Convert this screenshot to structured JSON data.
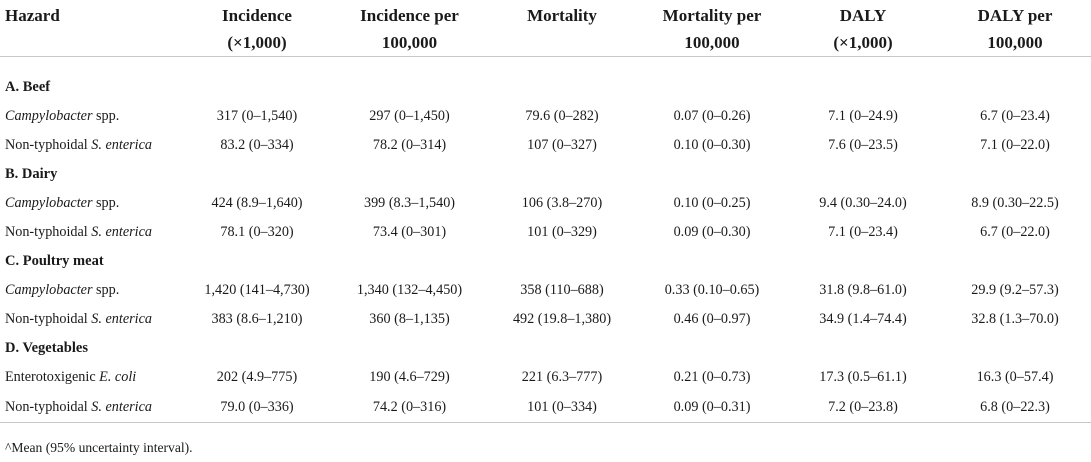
{
  "headers": [
    [
      "Hazard",
      ""
    ],
    [
      "Incidence",
      "(×1,000)"
    ],
    [
      "Incidence per",
      "100,000"
    ],
    [
      "Mortality",
      ""
    ],
    [
      "Mortality per",
      "100,000"
    ],
    [
      "DALY",
      "(×1,000)"
    ],
    [
      "DALY per",
      "100,000"
    ]
  ],
  "sections": [
    {
      "title": "A.  Beef",
      "rows": [
        {
          "pre": "",
          "ital": "Campylobacter",
          "post": " spp.",
          "values": [
            "317 (0–1,540)",
            "297 (0–1,450)",
            "79.6 (0–282)",
            "0.07 (0–0.26)",
            "7.1 (0–24.9)",
            "6.7 (0–23.4)"
          ]
        },
        {
          "pre": "Non-typhoidal ",
          "ital": "S. enterica",
          "post": "",
          "values": [
            "83.2 (0–334)",
            "78.2 (0–314)",
            "107 (0–327)",
            "0.10 (0–0.30)",
            "7.6 (0–23.5)",
            "7.1 (0–22.0)"
          ]
        }
      ]
    },
    {
      "title": "B.  Dairy",
      "rows": [
        {
          "pre": "",
          "ital": "Campylobacter",
          "post": " spp.",
          "values": [
            "424 (8.9–1,640)",
            "399 (8.3–1,540)",
            "106 (3.8–270)",
            "0.10 (0–0.25)",
            "9.4 (0.30–24.0)",
            "8.9 (0.30–22.5)"
          ]
        },
        {
          "pre": "Non-typhoidal ",
          "ital": "S. enterica",
          "post": "",
          "values": [
            "78.1 (0–320)",
            "73.4 (0–301)",
            "101 (0–329)",
            "0.09 (0–0.30)",
            "7.1 (0–23.4)",
            "6.7 (0–22.0)"
          ]
        }
      ]
    },
    {
      "title": "C.  Poultry meat",
      "rows": [
        {
          "pre": "",
          "ital": "Campylobacter",
          "post": " spp.",
          "values": [
            "1,420 (141–4,730)",
            "1,340 (132–4,450)",
            "358 (110–688)",
            "0.33 (0.10–0.65)",
            "31.8 (9.8–61.0)",
            "29.9 (9.2–57.3)"
          ]
        },
        {
          "pre": "Non-typhoidal ",
          "ital": "S. enterica",
          "post": "",
          "values": [
            "383 (8.6–1,210)",
            "360 (8–1,135)",
            "492 (19.8–1,380)",
            "0.46 (0–0.97)",
            "34.9 (1.4–74.4)",
            "32.8 (1.3–70.0)"
          ]
        }
      ]
    },
    {
      "title": "D.  Vegetables",
      "rows": [
        {
          "pre": "Enterotoxigenic ",
          "ital": "E. coli",
          "post": "",
          "values": [
            "202 (4.9–775)",
            "190 (4.6–729)",
            "221 (6.3–777)",
            "0.21 (0–0.73)",
            "17.3 (0.5–61.1)",
            "16.3 (0–57.4)"
          ]
        },
        {
          "pre": "Non-typhoidal ",
          "ital": "S. enterica",
          "post": "",
          "values": [
            "79.0 (0–336)",
            "74.2 (0–316)",
            "101 (0–334)",
            "0.09 (0–0.31)",
            "7.2 (0–23.8)",
            "6.8 (0–22.3)"
          ]
        }
      ]
    }
  ],
  "footnote": "^Mean (95% uncertainty interval)."
}
